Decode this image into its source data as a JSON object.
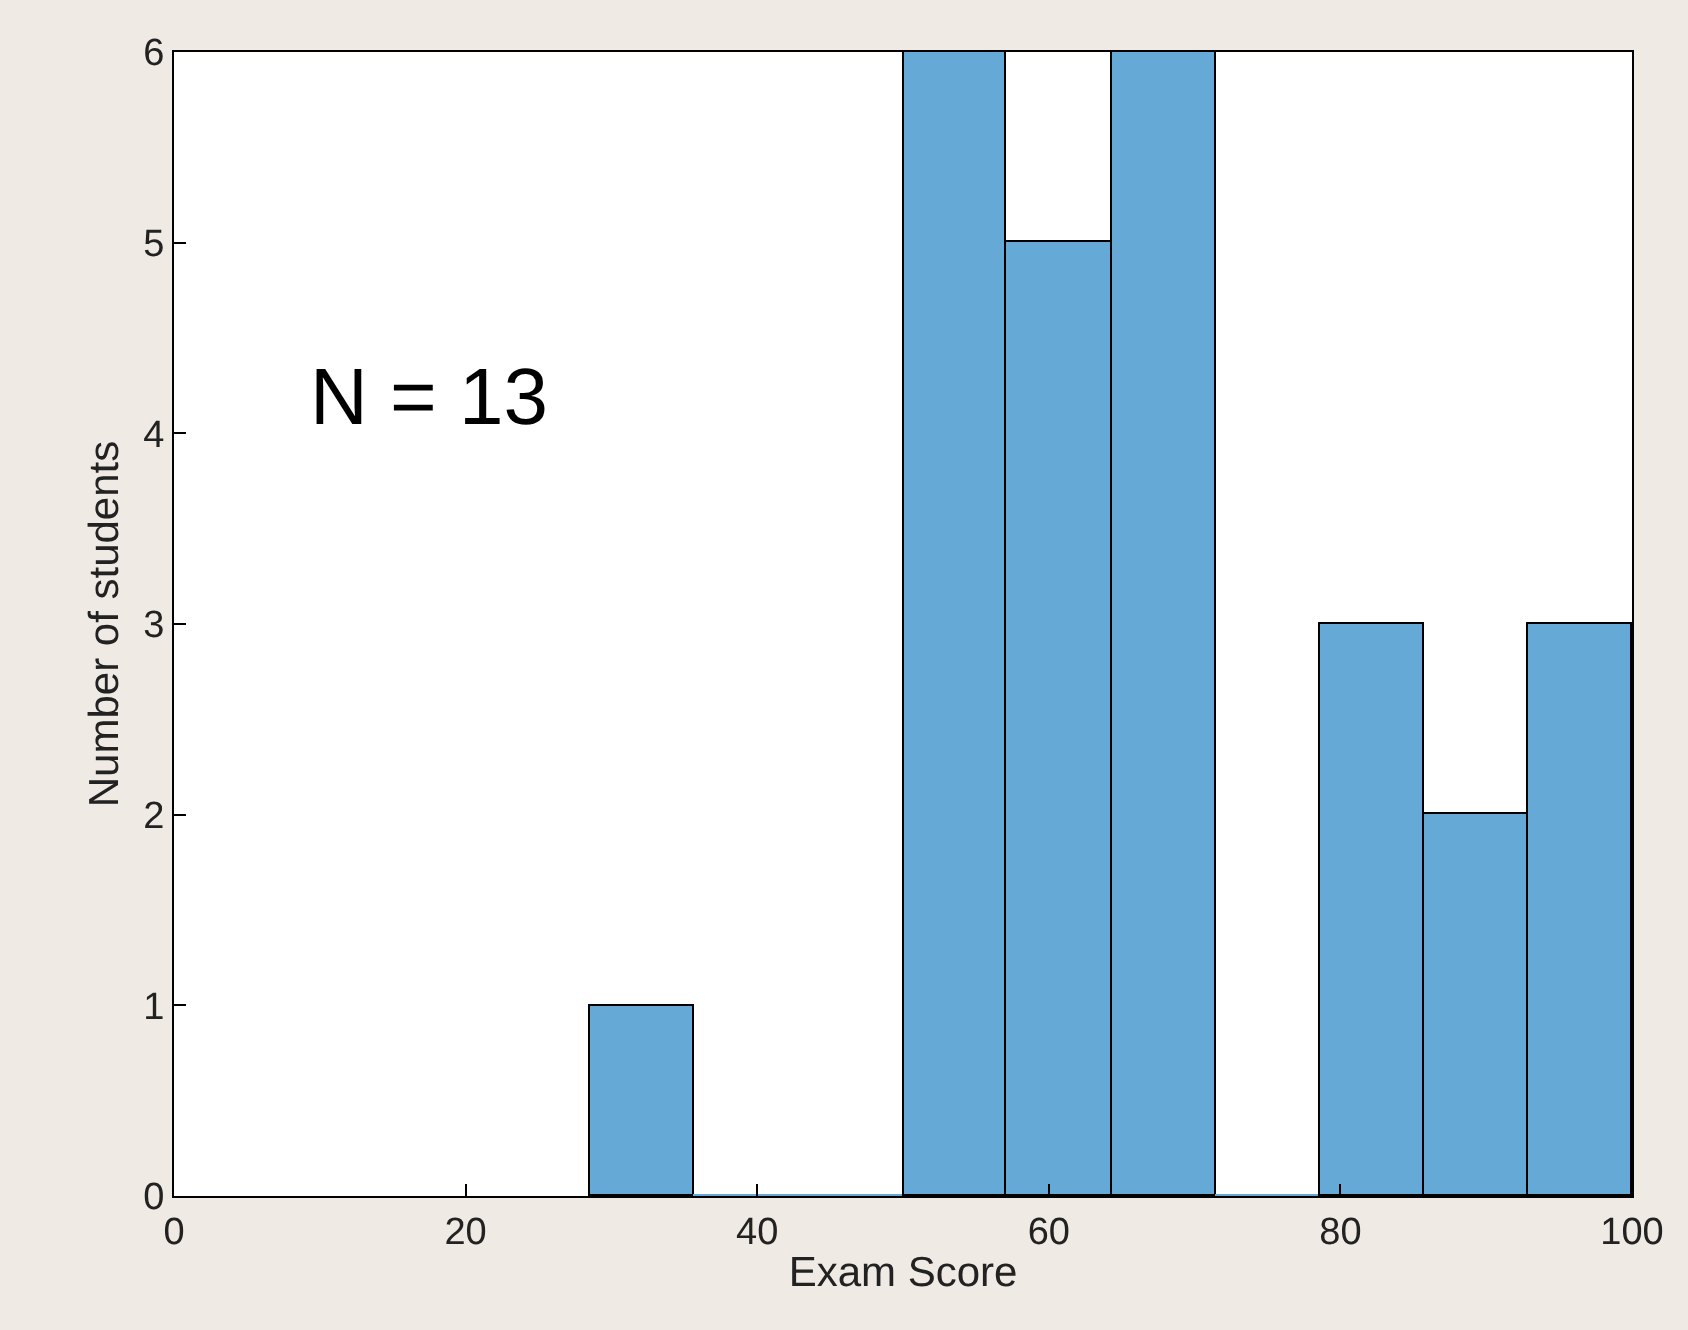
{
  "chart_data": {
    "type": "histogram",
    "xlabel": "Exam Score",
    "ylabel": "Number of students",
    "bins": [
      28.6,
      35.7,
      42.9,
      50,
      57.1,
      64.3,
      71.4,
      78.6,
      85.7,
      92.9,
      100
    ],
    "values": [
      1,
      0,
      0,
      6,
      5,
      6,
      0,
      3,
      2,
      3
    ],
    "color": "#65a9d7",
    "xlim": [
      0,
      100
    ],
    "xticks": [
      0,
      20,
      40,
      60,
      80,
      100
    ],
    "ylim": [
      0,
      6
    ],
    "yticks": [
      0,
      1,
      2,
      3,
      4,
      5,
      6
    ],
    "annotations": [
      "N = 13"
    ]
  }
}
